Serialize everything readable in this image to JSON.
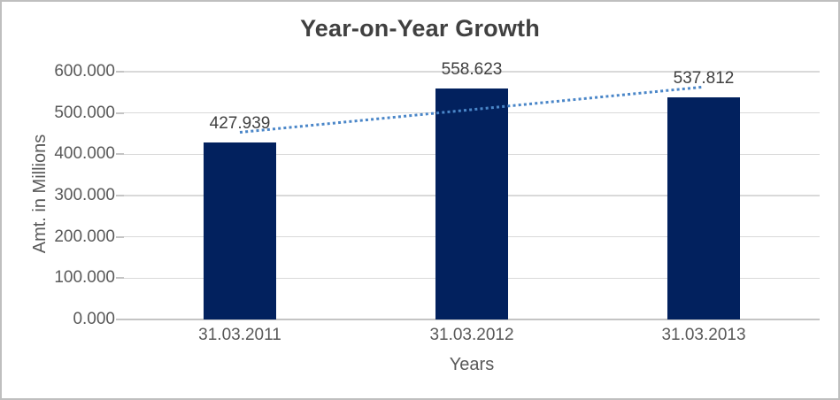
{
  "chart_data": {
    "type": "bar",
    "title": "Year-on-Year Growth",
    "xlabel": "Years",
    "ylabel": "Amt. in Millions",
    "categories": [
      "31.03.2011",
      "31.03.2012",
      "31.03.2013"
    ],
    "values": [
      427.939,
      558.623,
      537.812
    ],
    "data_labels": [
      "427.939",
      "558.623",
      "537.812"
    ],
    "ylim": [
      0,
      600
    ],
    "ytick_step": 100,
    "ytick_labels": [
      "0.000",
      "100.000",
      "200.000",
      "300.000",
      "400.000",
      "500.000",
      "600.000"
    ],
    "grid": true,
    "legend": "none",
    "trendline": {
      "type": "linear",
      "style": "dotted"
    },
    "colors": {
      "bar": "#02215E",
      "trendline": "#4A86C8",
      "gridline": "#D9D9D9",
      "axis_line": "#C4C4C4",
      "title_text": "#404040",
      "axis_text": "#595959",
      "data_label_text": "#404040",
      "border": "#BFBFBF",
      "background": "#FFFFFF"
    }
  }
}
